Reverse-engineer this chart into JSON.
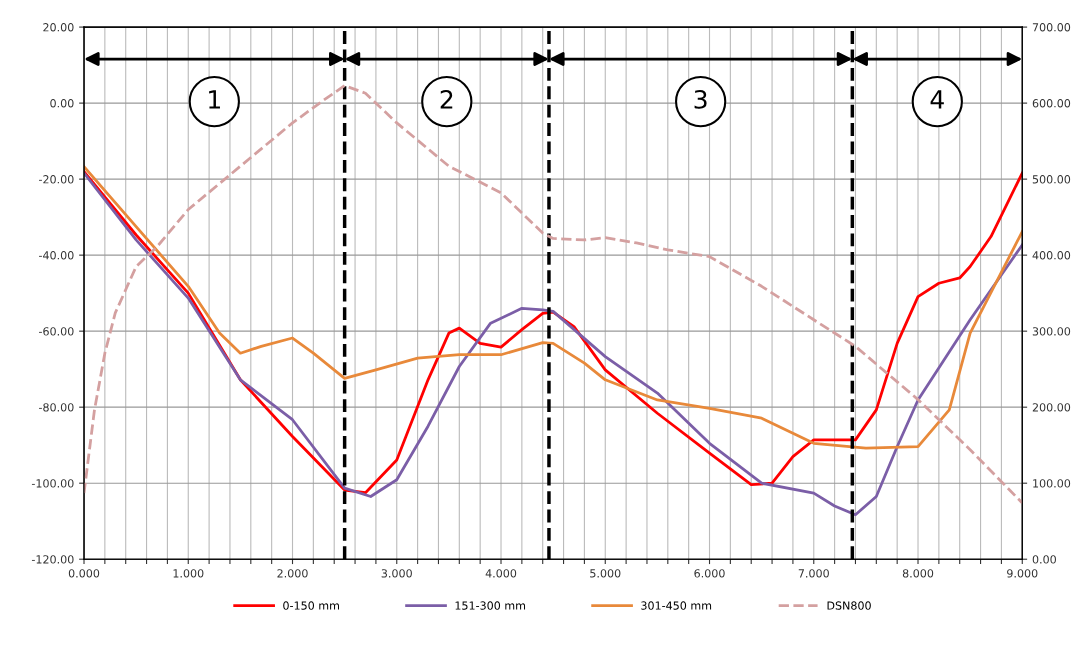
{
  "chart_data": {
    "type": "line",
    "xlim": [
      0,
      9
    ],
    "ylim": [
      -120,
      20
    ],
    "y2lim": [
      0,
      700
    ],
    "xticks": [
      {
        "value": 0,
        "label": "0.000"
      },
      {
        "value": 0.2,
        "label": null
      },
      {
        "value": 0.4,
        "label": null
      },
      {
        "value": 0.6,
        "label": null
      },
      {
        "value": 0.8,
        "label": null
      },
      {
        "value": 1,
        "label": "1.000"
      },
      {
        "value": 1.2,
        "label": null
      },
      {
        "value": 1.4,
        "label": null
      },
      {
        "value": 1.6,
        "label": null
      },
      {
        "value": 1.8,
        "label": null
      },
      {
        "value": 2,
        "label": "2.000"
      },
      {
        "value": 2.2,
        "label": null
      },
      {
        "value": 2.4,
        "label": null
      },
      {
        "value": 2.6,
        "label": null
      },
      {
        "value": 2.8,
        "label": null
      },
      {
        "value": 3,
        "label": "3.000"
      },
      {
        "value": 3.2,
        "label": null
      },
      {
        "value": 3.4,
        "label": null
      },
      {
        "value": 3.6,
        "label": null
      },
      {
        "value": 3.8,
        "label": null
      },
      {
        "value": 4,
        "label": "4.000"
      },
      {
        "value": 4.2,
        "label": null
      },
      {
        "value": 4.4,
        "label": null
      },
      {
        "value": 4.6,
        "label": null
      },
      {
        "value": 4.8,
        "label": null
      },
      {
        "value": 5,
        "label": "5.000"
      },
      {
        "value": 5.2,
        "label": null
      },
      {
        "value": 5.4,
        "label": null
      },
      {
        "value": 5.6,
        "label": null
      },
      {
        "value": 5.8,
        "label": null
      },
      {
        "value": 6,
        "label": "6.000"
      },
      {
        "value": 6.2,
        "label": null
      },
      {
        "value": 6.4,
        "label": null
      },
      {
        "value": 6.6,
        "label": null
      },
      {
        "value": 6.8,
        "label": null
      },
      {
        "value": 7,
        "label": "7.000"
      },
      {
        "value": 7.2,
        "label": null
      },
      {
        "value": 7.4,
        "label": null
      },
      {
        "value": 7.6,
        "label": null
      },
      {
        "value": 7.8,
        "label": null
      },
      {
        "value": 8,
        "label": "8.000"
      },
      {
        "value": 8.2,
        "label": null
      },
      {
        "value": 8.4,
        "label": null
      },
      {
        "value": 8.6,
        "label": null
      },
      {
        "value": 8.8,
        "label": null
      },
      {
        "value": 9,
        "label": "9.000"
      }
    ],
    "yticks": [
      {
        "value": 20,
        "label": "20.00"
      },
      {
        "value": 0,
        "label": "0.00"
      },
      {
        "value": -20,
        "label": "-20.00"
      },
      {
        "value": -40,
        "label": "-40.00"
      },
      {
        "value": -60,
        "label": "-60.00"
      },
      {
        "value": -80,
        "label": "-80.00"
      },
      {
        "value": -100,
        "label": "-100.00"
      },
      {
        "value": -120,
        "label": "-120.00"
      }
    ],
    "y2ticks": [
      {
        "value": 0,
        "label": "0.00"
      },
      {
        "value": 100,
        "label": "100.00"
      },
      {
        "value": 200,
        "label": "200.00"
      },
      {
        "value": 300,
        "label": "300.00"
      },
      {
        "value": 400,
        "label": "400.00"
      },
      {
        "value": 500,
        "label": "500.00"
      },
      {
        "value": 600,
        "label": "600.00"
      },
      {
        "value": 700,
        "label": "700.00"
      }
    ],
    "grid": true,
    "legend": "bottom",
    "series": [
      {
        "name": "0-150 mm",
        "color": "#ff0000",
        "x": [
          0,
          0.5,
          1,
          1.5,
          2,
          2.5,
          2.7,
          3,
          3.3,
          3.5,
          3.6,
          3.8,
          4,
          4.2,
          4.4,
          4.5,
          4.7,
          5,
          5.5,
          6,
          6.4,
          6.6,
          6.8,
          7,
          7.2,
          7.4,
          7.6,
          7.8,
          8,
          8.2,
          8.4,
          8.5,
          8.7,
          9
        ],
        "values": [
          -18,
          -34.7,
          -50,
          -72.8,
          -87.7,
          -101.8,
          -102.5,
          -93.9,
          -72.8,
          -60.5,
          -59.2,
          -63.2,
          -64.2,
          -59.6,
          -55.3,
          -55,
          -58.8,
          -70.2,
          -81.6,
          -92.1,
          -100.4,
          -100,
          -93,
          -88.6,
          -88.6,
          -88.6,
          -80.7,
          -63.2,
          -50.9,
          -47.4,
          -46,
          -43,
          -35.1,
          -18.4
        ]
      },
      {
        "name": "151-300 mm",
        "color": "#7b5ea7",
        "x": [
          0,
          0.5,
          1,
          1.5,
          2,
          2.5,
          2.75,
          3,
          3.3,
          3.6,
          3.9,
          4.2,
          4.4,
          4.5,
          5,
          5.5,
          6,
          6.5,
          7,
          7.2,
          7.4,
          7.6,
          7.8,
          8,
          8.5,
          9
        ],
        "values": [
          -18.4,
          -36,
          -51.3,
          -72.8,
          -83.3,
          -101.3,
          -103.5,
          -99.1,
          -85,
          -69.3,
          -57.9,
          -54,
          -54.4,
          -54.8,
          -66.7,
          -76.3,
          -89.5,
          -100,
          -102.6,
          -106,
          -108.3,
          -103.5,
          -90.4,
          -78.1,
          -57,
          -37.3
        ]
      },
      {
        "name": "301-450 mm",
        "color": "#e8893a",
        "x": [
          0,
          0.5,
          1,
          1.3,
          1.5,
          1.7,
          2,
          2.2,
          2.5,
          2.8,
          3.2,
          3.6,
          4,
          4.4,
          4.5,
          4.8,
          5,
          5.5,
          6,
          6.5,
          7,
          7.5,
          8,
          8.3,
          8.5,
          9
        ],
        "values": [
          -16.7,
          -32.5,
          -48.2,
          -60.5,
          -65.8,
          -64,
          -61.8,
          -65.8,
          -72.4,
          -70.2,
          -67.1,
          -66.2,
          -66.2,
          -63,
          -63.2,
          -68.4,
          -72.8,
          -78.1,
          -80.3,
          -82.9,
          -89.5,
          -90.8,
          -90.4,
          -80.7,
          -60.5,
          -33.8
        ]
      },
      {
        "name": "DSN800",
        "color": "#d4a0a0",
        "axis": "y2",
        "line_style": "dashed",
        "x": [
          0,
          0.1,
          0.2,
          0.3,
          0.5,
          0.7,
          1,
          1.5,
          2,
          2.3,
          2.5,
          2.7,
          3,
          3.5,
          4,
          4.4,
          4.5,
          4.8,
          5,
          5.3,
          5.6,
          6,
          6.5,
          7,
          7.4,
          8,
          8.5,
          9
        ],
        "values": [
          87,
          196,
          271,
          324,
          385,
          411,
          460,
          517,
          574,
          604,
          623,
          613,
          574,
          517,
          482,
          429,
          422,
          420,
          423,
          416,
          407,
          398,
          359,
          315,
          280,
          210,
          144,
          74
        ]
      }
    ],
    "ref_lines": [
      {
        "axis": "x",
        "value": 2.5,
        "color": "#000000",
        "line_style": "dashed"
      },
      {
        "axis": "x",
        "value": 4.46,
        "color": "#000000",
        "line_style": "dashed"
      },
      {
        "axis": "x",
        "value": 7.37,
        "color": "#000000",
        "line_style": "dashed"
      }
    ],
    "annotations": [
      "1",
      "2",
      "3",
      "4"
    ]
  }
}
